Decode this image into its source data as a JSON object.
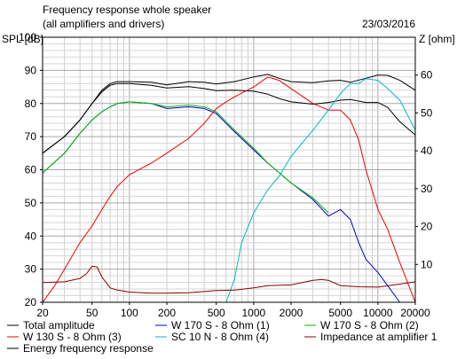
{
  "chart_data": {
    "type": "line",
    "title": "Frequency response whole speaker",
    "subtitle": "(all amplifiers and drivers)",
    "date": "23/03/2016",
    "xlabel": "",
    "ylabel": "SPL [dB]",
    "y2label": "Z [ohm]",
    "x_scale": "log",
    "xlim": [
      20,
      20000
    ],
    "ylim": [
      20,
      100
    ],
    "y2lim": [
      0,
      70
    ],
    "grid": true,
    "legend_position": "bottom",
    "x_ticks": [
      {
        "value": 20,
        "label": "20"
      },
      {
        "value": 50,
        "label": "50"
      },
      {
        "value": 100,
        "label": "100"
      },
      {
        "value": 200,
        "label": "200"
      },
      {
        "value": 500,
        "label": "500"
      },
      {
        "value": 1000,
        "label": "1000"
      },
      {
        "value": 2000,
        "label": "2000"
      },
      {
        "value": 5000,
        "label": "5000"
      },
      {
        "value": 10000,
        "label": "10000"
      },
      {
        "value": 20000,
        "label": "20000"
      }
    ],
    "y_ticks": [
      {
        "value": 20,
        "label": "20"
      },
      {
        "value": 30,
        "label": "30"
      },
      {
        "value": 40,
        "label": "40"
      },
      {
        "value": 50,
        "label": "50"
      },
      {
        "value": 60,
        "label": "60"
      },
      {
        "value": 70,
        "label": "70"
      },
      {
        "value": 80,
        "label": "80"
      },
      {
        "value": 90,
        "label": "90"
      },
      {
        "value": 100,
        "label": "100"
      }
    ],
    "y2_ticks": [
      {
        "value": 10,
        "label": "10"
      },
      {
        "value": 20,
        "label": "20"
      },
      {
        "value": 30,
        "label": "30"
      },
      {
        "value": 40,
        "label": "40"
      },
      {
        "value": 50,
        "label": "50"
      },
      {
        "value": 60,
        "label": "60"
      }
    ],
    "series": [
      {
        "name": "Total amplitude",
        "color": "#000000",
        "axis": "left",
        "points": [
          [
            20,
            65
          ],
          [
            30,
            70
          ],
          [
            40,
            75
          ],
          [
            50,
            80
          ],
          [
            60,
            84
          ],
          [
            70,
            86
          ],
          [
            80,
            86.6
          ],
          [
            100,
            86.6
          ],
          [
            150,
            86.4
          ],
          [
            200,
            85.6
          ],
          [
            300,
            86.6
          ],
          [
            400,
            86.4
          ],
          [
            500,
            85.9
          ],
          [
            700,
            86.6
          ],
          [
            1000,
            88
          ],
          [
            1300,
            88.8
          ],
          [
            1600,
            87.6
          ],
          [
            2000,
            86.6
          ],
          [
            3000,
            86.3
          ],
          [
            4000,
            86.8
          ],
          [
            5000,
            87
          ],
          [
            6000,
            86.4
          ],
          [
            8000,
            87.6
          ],
          [
            10000,
            88.6
          ],
          [
            12000,
            88.5
          ],
          [
            15000,
            87
          ],
          [
            20000,
            84
          ]
        ]
      },
      {
        "name": "Energy frequency response",
        "color": "#000000",
        "axis": "left",
        "points": [
          [
            20,
            65
          ],
          [
            30,
            70
          ],
          [
            40,
            75
          ],
          [
            50,
            80
          ],
          [
            60,
            83.5
          ],
          [
            70,
            85.5
          ],
          [
            80,
            86
          ],
          [
            100,
            86
          ],
          [
            150,
            85.5
          ],
          [
            200,
            84.7
          ],
          [
            300,
            85.1
          ],
          [
            400,
            84.5
          ],
          [
            500,
            83.9
          ],
          [
            700,
            84
          ],
          [
            1000,
            83.7
          ],
          [
            1300,
            82.8
          ],
          [
            1600,
            81.5
          ],
          [
            2000,
            80.5
          ],
          [
            3000,
            79.8
          ],
          [
            4000,
            80.3
          ],
          [
            5000,
            81
          ],
          [
            6000,
            81.2
          ],
          [
            8000,
            80.3
          ],
          [
            10000,
            80.3
          ],
          [
            12000,
            78.8
          ],
          [
            15000,
            74.5
          ],
          [
            20000,
            70.5
          ]
        ]
      },
      {
        "name": "W 170 S - 8 Ohm (1)",
        "color": "#0000cc",
        "axis": "left",
        "points": [
          [
            20,
            59
          ],
          [
            30,
            65
          ],
          [
            40,
            71
          ],
          [
            50,
            75
          ],
          [
            60,
            77.5
          ],
          [
            70,
            79
          ],
          [
            80,
            80
          ],
          [
            100,
            80.5
          ],
          [
            150,
            80
          ],
          [
            200,
            78.5
          ],
          [
            300,
            79
          ],
          [
            400,
            78.5
          ],
          [
            500,
            77
          ],
          [
            600,
            74
          ],
          [
            700,
            71.5
          ],
          [
            1000,
            66
          ],
          [
            1300,
            62
          ],
          [
            2000,
            56
          ],
          [
            3000,
            51
          ],
          [
            4000,
            46
          ],
          [
            5000,
            48
          ],
          [
            6000,
            45
          ],
          [
            7000,
            38
          ],
          [
            8000,
            33
          ],
          [
            10000,
            29
          ],
          [
            12000,
            25
          ],
          [
            15000,
            20
          ]
        ]
      },
      {
        "name": "W 170 S - 8 Ohm (2)",
        "color": "#00bb00",
        "axis": "left",
        "points": [
          [
            20,
            59
          ],
          [
            30,
            65
          ],
          [
            40,
            71
          ],
          [
            50,
            75
          ],
          [
            60,
            77.5
          ],
          [
            70,
            79
          ],
          [
            80,
            80
          ],
          [
            100,
            80.5
          ],
          [
            150,
            80
          ],
          [
            200,
            79
          ],
          [
            300,
            79.5
          ],
          [
            400,
            79
          ],
          [
            500,
            77.5
          ],
          [
            600,
            74.5
          ],
          [
            700,
            72
          ],
          [
            1000,
            66.5
          ],
          [
            1300,
            62
          ],
          [
            2000,
            56
          ],
          [
            3000,
            51.5
          ],
          [
            4000,
            47
          ]
        ]
      },
      {
        "name": "W 130 S - 8 Ohm (3)",
        "color": "#ee0000",
        "axis": "left",
        "points": [
          [
            20,
            20
          ],
          [
            25,
            25
          ],
          [
            30,
            30
          ],
          [
            40,
            38
          ],
          [
            50,
            43
          ],
          [
            60,
            48
          ],
          [
            70,
            52
          ],
          [
            80,
            55
          ],
          [
            100,
            58.5
          ],
          [
            150,
            62
          ],
          [
            200,
            65
          ],
          [
            300,
            69.5
          ],
          [
            400,
            74
          ],
          [
            500,
            78.5
          ],
          [
            600,
            80.5
          ],
          [
            700,
            82
          ],
          [
            1000,
            85
          ],
          [
            1300,
            88
          ],
          [
            1600,
            87
          ],
          [
            2000,
            84.5
          ],
          [
            3000,
            80
          ],
          [
            4000,
            78
          ],
          [
            5000,
            78
          ],
          [
            6000,
            75
          ],
          [
            7000,
            69
          ],
          [
            8000,
            60
          ],
          [
            10000,
            48
          ],
          [
            12000,
            42
          ],
          [
            15000,
            32
          ],
          [
            20000,
            20
          ]
        ]
      },
      {
        "name": "SC 10 N - 8 Ohm (4)",
        "color": "#00bbbb",
        "axis": "left",
        "points": [
          [
            600,
            20
          ],
          [
            700,
            27
          ],
          [
            800,
            38
          ],
          [
            1000,
            47
          ],
          [
            1300,
            54
          ],
          [
            1600,
            58
          ],
          [
            2000,
            64
          ],
          [
            3000,
            72
          ],
          [
            4000,
            78
          ],
          [
            5000,
            83
          ],
          [
            6000,
            86
          ],
          [
            7000,
            86
          ],
          [
            8000,
            87.5
          ],
          [
            10000,
            87
          ],
          [
            12000,
            84.5
          ],
          [
            15000,
            81
          ],
          [
            20000,
            72
          ]
        ]
      },
      {
        "name": "Impedance at amplifier 1",
        "color": "#880000",
        "axis": "right",
        "points": [
          [
            20,
            5.2
          ],
          [
            30,
            5.4
          ],
          [
            40,
            6.3
          ],
          [
            45,
            7.5
          ],
          [
            50,
            9.5
          ],
          [
            55,
            9.3
          ],
          [
            60,
            6.7
          ],
          [
            70,
            3.8
          ],
          [
            80,
            3.2
          ],
          [
            100,
            2.7
          ],
          [
            150,
            2.4
          ],
          [
            200,
            2.4
          ],
          [
            300,
            2.5
          ],
          [
            500,
            3.1
          ],
          [
            700,
            3.2
          ],
          [
            1000,
            3.8
          ],
          [
            1300,
            4.4
          ],
          [
            2000,
            4.6
          ],
          [
            3000,
            5.8
          ],
          [
            3500,
            6
          ],
          [
            4000,
            5.8
          ],
          [
            5000,
            4.4
          ],
          [
            7000,
            4.1
          ],
          [
            10000,
            4
          ],
          [
            15000,
            4.8
          ],
          [
            20000,
            5.4
          ]
        ]
      }
    ],
    "legend": [
      {
        "label": "Total amplitude",
        "color": "#000000"
      },
      {
        "label": "W 170 S - 8 Ohm (1)",
        "color": "#0000cc"
      },
      {
        "label": "W 170 S - 8 Ohm (2)",
        "color": "#00bb00"
      },
      {
        "label": "W 130 S - 8 Ohm (3)",
        "color": "#ee0000"
      },
      {
        "label": "SC 10 N - 8 Ohm (4)",
        "color": "#00bbbb"
      },
      {
        "label": "Impedance at amplifier 1",
        "color": "#880000"
      },
      {
        "label": "Energy frequency response",
        "color": "#000000"
      }
    ]
  }
}
